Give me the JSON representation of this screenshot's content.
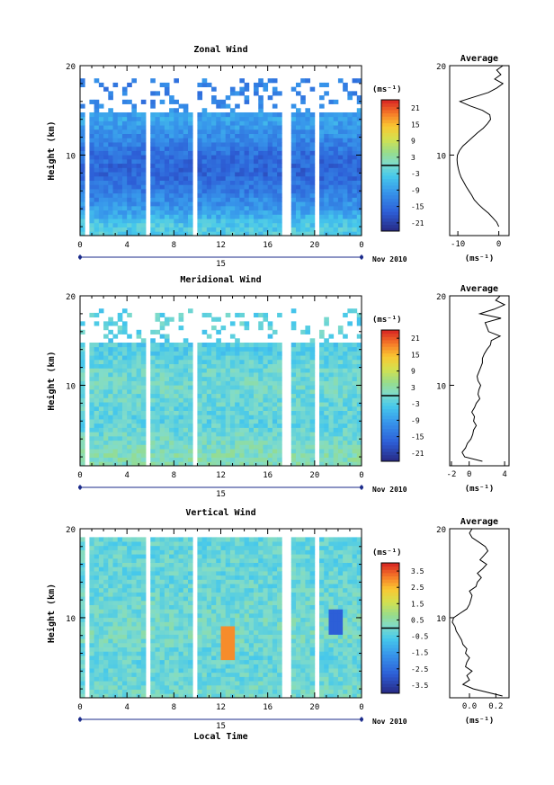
{
  "xlabel": "Local Time",
  "date_label": "Nov 2010",
  "day_label": "15",
  "chart_data": [
    {
      "type": "heatmap",
      "title": "Zonal Wind",
      "ylabel": "Height (km)",
      "xlabel": "Local Time",
      "x_ticks": [
        "0",
        "4",
        "8",
        "12",
        "16",
        "20",
        "0"
      ],
      "y_ticks": [
        "20",
        "10"
      ],
      "ylim": [
        1,
        20
      ],
      "xlim": [
        0,
        24
      ],
      "colorbar": {
        "unit": "(ms⁻¹)",
        "ticks": [
          "21",
          "15",
          "9",
          "3",
          "-3",
          "-9",
          "-15",
          "-21"
        ],
        "range": [
          -24,
          24
        ]
      },
      "data_top_km": 18.5,
      "sparse_above_km": 15.0,
      "field": {
        "levels_km": [
          2,
          4,
          6,
          8,
          10,
          12,
          14,
          16
        ],
        "values": [
          -3,
          -9,
          -13,
          -16,
          -15,
          -11,
          -8,
          -12
        ]
      },
      "average": {
        "title": "Average",
        "unit": "(ms⁻¹)",
        "x_ticks": [
          "-10",
          "0"
        ],
        "xlim": [
          -12,
          2.5
        ],
        "y_ticks": [
          "20",
          "10"
        ],
        "profile": [
          [
            2,
            0.0
          ],
          [
            2.5,
            -0.5
          ],
          [
            3,
            -1.5
          ],
          [
            3.5,
            -2.5
          ],
          [
            4,
            -3.8
          ],
          [
            4.5,
            -5.0
          ],
          [
            5,
            -6.0
          ],
          [
            5.5,
            -6.6
          ],
          [
            6,
            -7.3
          ],
          [
            6.5,
            -8.0
          ],
          [
            7,
            -8.6
          ],
          [
            7.5,
            -9.2
          ],
          [
            8,
            -9.6
          ],
          [
            8.5,
            -9.9
          ],
          [
            9,
            -10.1
          ],
          [
            9.5,
            -10.2
          ],
          [
            10,
            -10.1
          ],
          [
            10.5,
            -9.6
          ],
          [
            11,
            -8.8
          ],
          [
            11.5,
            -7.6
          ],
          [
            12,
            -6.4
          ],
          [
            12.5,
            -5.2
          ],
          [
            13,
            -3.8
          ],
          [
            13.5,
            -2.8
          ],
          [
            14,
            -2.0
          ],
          [
            14.5,
            -2.2
          ],
          [
            15,
            -4.0
          ],
          [
            15.5,
            -7.0
          ],
          [
            16,
            -9.5
          ],
          [
            16.5,
            -6.0
          ],
          [
            17,
            -2.5
          ],
          [
            17.5,
            -0.5
          ],
          [
            18,
            1.0
          ],
          [
            18.5,
            -1.0
          ],
          [
            19,
            0.5
          ],
          [
            19.5,
            -0.5
          ],
          [
            20,
            1.0
          ]
        ]
      }
    },
    {
      "type": "heatmap",
      "title": "Meridional Wind",
      "ylabel": "Height (km)",
      "xlabel": "Local Time",
      "x_ticks": [
        "0",
        "4",
        "8",
        "12",
        "16",
        "20",
        "0"
      ],
      "y_ticks": [
        "20",
        "10"
      ],
      "ylim": [
        1,
        20
      ],
      "xlim": [
        0,
        24
      ],
      "colorbar": {
        "unit": "(ms⁻¹)",
        "ticks": [
          "21",
          "15",
          "9",
          "3",
          "-3",
          "-9",
          "-15",
          "-21"
        ],
        "range": [
          -24,
          24
        ]
      },
      "data_top_km": 18.5,
      "sparse_above_km": 15.0,
      "field": {
        "levels_km": [
          2,
          4,
          6,
          8,
          10,
          12,
          14,
          16
        ],
        "values": [
          2,
          0,
          -2,
          -1,
          0,
          -1,
          -3,
          -2
        ]
      },
      "average": {
        "title": "Average",
        "unit": "(ms⁻¹)",
        "x_ticks": [
          "-2",
          "0",
          "4"
        ],
        "xlim": [
          -2.2,
          4.5
        ],
        "y_ticks": [
          "20",
          "10"
        ],
        "profile": [
          [
            1.5,
            1.5
          ],
          [
            2,
            -0.5
          ],
          [
            2.5,
            -0.8
          ],
          [
            3,
            -0.4
          ],
          [
            3.5,
            -0.2
          ],
          [
            4,
            0.2
          ],
          [
            4.5,
            0.4
          ],
          [
            5,
            0.5
          ],
          [
            5.5,
            0.8
          ],
          [
            6,
            0.5
          ],
          [
            6.5,
            0.6
          ],
          [
            7,
            0.3
          ],
          [
            7.5,
            0.6
          ],
          [
            8,
            0.8
          ],
          [
            8.5,
            1.2
          ],
          [
            9,
            1.0
          ],
          [
            9.5,
            1.1
          ],
          [
            10,
            1.3
          ],
          [
            10.5,
            1.0
          ],
          [
            11,
            0.9
          ],
          [
            11.5,
            1.1
          ],
          [
            12,
            1.3
          ],
          [
            12.5,
            1.5
          ],
          [
            13,
            1.5
          ],
          [
            13.5,
            1.7
          ],
          [
            14,
            2.0
          ],
          [
            14.5,
            2.4
          ],
          [
            15,
            2.5
          ],
          [
            15.5,
            3.5
          ],
          [
            16,
            2.2
          ],
          [
            16.5,
            2.0
          ],
          [
            17,
            1.8
          ],
          [
            17.5,
            3.6
          ],
          [
            18,
            1.2
          ],
          [
            18.5,
            2.8
          ],
          [
            19,
            4.0
          ],
          [
            19.5,
            3.0
          ],
          [
            20,
            3.5
          ]
        ]
      }
    },
    {
      "type": "heatmap",
      "title": "Vertical Wind",
      "ylabel": "Height (km)",
      "xlabel": "Local Time",
      "x_ticks": [
        "0",
        "4",
        "8",
        "12",
        "16",
        "20",
        "0"
      ],
      "y_ticks": [
        "20",
        "10"
      ],
      "ylim": [
        1,
        20
      ],
      "xlim": [
        0,
        24
      ],
      "colorbar": {
        "unit": "(ms⁻¹)",
        "ticks": [
          "3.5",
          "2.5",
          "1.5",
          "0.5",
          "-0.5",
          "-1.5",
          "-2.5",
          "-3.5"
        ],
        "range": [
          -4,
          4
        ]
      },
      "data_top_km": 19.2,
      "sparse_above_km": 19.0,
      "field": {
        "levels_km": [
          2,
          4,
          6,
          8,
          10,
          12,
          14,
          16
        ],
        "values": [
          0.0,
          -0.2,
          -0.2,
          0.1,
          0.0,
          -0.1,
          -0.2,
          -0.2
        ]
      },
      "average": {
        "title": "Average",
        "unit": "(ms⁻¹)",
        "x_ticks": [
          "0.0",
          "0.2"
        ],
        "xlim": [
          -0.15,
          0.3
        ],
        "y_ticks": [
          "20",
          "10"
        ],
        "profile": [
          [
            1.2,
            0.25
          ],
          [
            2,
            0.03
          ],
          [
            2.5,
            -0.05
          ],
          [
            3,
            0.0
          ],
          [
            3.5,
            -0.02
          ],
          [
            4,
            0.02
          ],
          [
            4.5,
            -0.03
          ],
          [
            5,
            -0.02
          ],
          [
            5.5,
            0.0
          ],
          [
            6,
            -0.03
          ],
          [
            6.5,
            -0.02
          ],
          [
            7,
            -0.05
          ],
          [
            7.5,
            -0.06
          ],
          [
            8,
            -0.08
          ],
          [
            8.5,
            -0.1
          ],
          [
            9,
            -0.11
          ],
          [
            9.5,
            -0.13
          ],
          [
            10,
            -0.12
          ],
          [
            10.5,
            -0.07
          ],
          [
            11,
            -0.02
          ],
          [
            11.5,
            0.0
          ],
          [
            12,
            0.01
          ],
          [
            12.5,
            0.02
          ],
          [
            13,
            0.0
          ],
          [
            13.5,
            0.05
          ],
          [
            14,
            0.06
          ],
          [
            14.5,
            0.09
          ],
          [
            15,
            0.06
          ],
          [
            15.5,
            0.1
          ],
          [
            16,
            0.13
          ],
          [
            16.5,
            0.08
          ],
          [
            17,
            0.11
          ],
          [
            17.5,
            0.14
          ],
          [
            18,
            0.12
          ],
          [
            18.5,
            0.07
          ],
          [
            19,
            0.02
          ],
          [
            19.5,
            0.0
          ],
          [
            20,
            0.02
          ]
        ]
      }
    }
  ]
}
